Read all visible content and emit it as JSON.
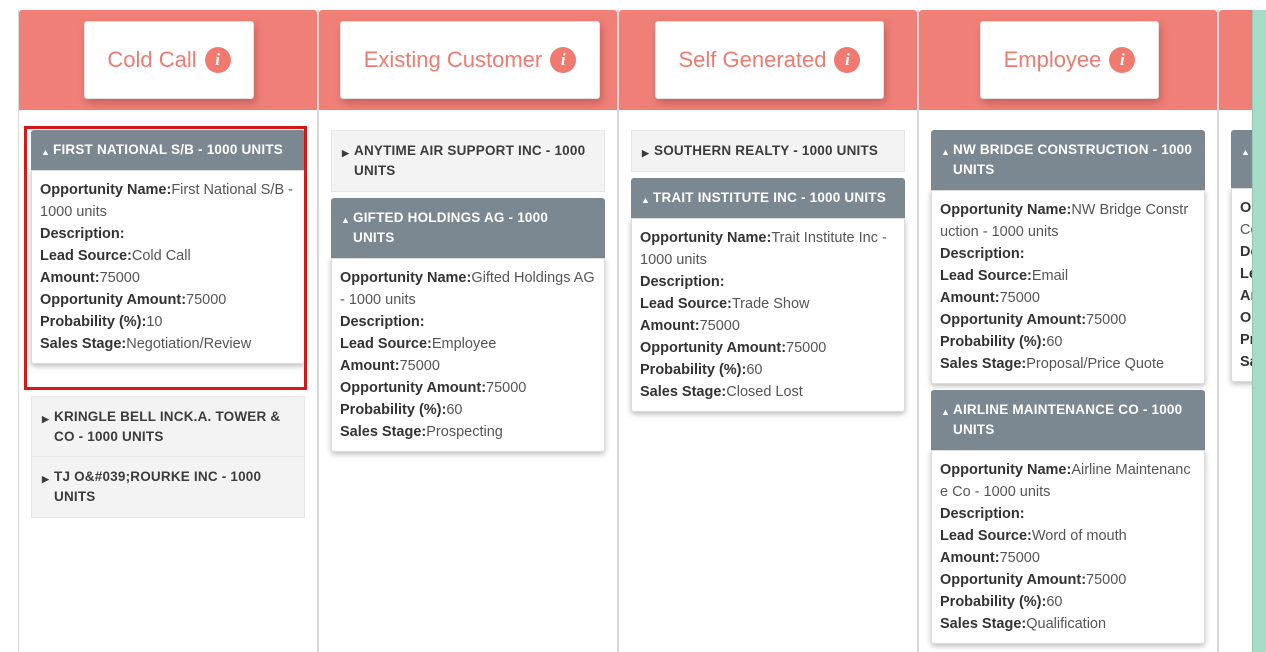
{
  "columns": [
    {
      "title": "Cold Call",
      "cards": [
        {
          "title": "FIRST NATIONAL S/B - 1000 UNITS",
          "expanded": true,
          "details": {
            "opportunity_name": "First National S/B - 1000 units",
            "description": "",
            "lead_source": "Cold Call",
            "amount": "75000",
            "opportunity_amount": "75000",
            "probability": "10",
            "sales_stage": "Negotiation/Review"
          }
        },
        {
          "title": "KRINGLE BELL INCK.A. TOWER & CO - 1000 UNITS",
          "expanded": false
        },
        {
          "title": "TJ O&#039;ROURKE INC - 1000 UNITS",
          "expanded": false
        }
      ]
    },
    {
      "title": "Existing Customer",
      "cards": [
        {
          "title": "ANYTIME AIR SUPPORT INC - 1000 UNITS",
          "expanded": false
        },
        {
          "title": "GIFTED HOLDINGS AG - 1000 UNITS",
          "expanded": true,
          "details": {
            "opportunity_name": "Gifted Holdings AG - 1000 units",
            "description": "",
            "lead_source": "Employee",
            "amount": "75000",
            "opportunity_amount": "75000",
            "probability": "60",
            "sales_stage": "Prospecting"
          }
        }
      ]
    },
    {
      "title": "Self Generated",
      "cards": [
        {
          "title": "SOUTHERN REALTY - 1000 UNITS",
          "expanded": false
        },
        {
          "title": "TRAIT INSTITUTE INC - 1000 UNITS",
          "expanded": true,
          "details": {
            "opportunity_name": "Trait Institute Inc - 1000 units",
            "description": "",
            "lead_source": "Trade Show",
            "amount": "75000",
            "opportunity_amount": "75000",
            "probability": "60",
            "sales_stage": "Closed Lost"
          }
        }
      ]
    },
    {
      "title": "Employee",
      "cards": [
        {
          "title": "NW BRIDGE CONSTRUCTION - 1000 UNITS",
          "expanded": true,
          "details": {
            "opportunity_name": "NW Bridge Construction - 1000 units",
            "description": "",
            "lead_source": "Email",
            "amount": "75000",
            "opportunity_amount": "75000",
            "probability": "60",
            "sales_stage": "Proposal/Price Quote"
          }
        },
        {
          "title": "AIRLINE MAINTENANCE CO - 1000 UNITS",
          "expanded": true,
          "details": {
            "opportunity_name": "Airline Maintenance Co - 1000 units",
            "description": "",
            "lead_source": "Word of mouth",
            "amount": "75000",
            "opportunity_amount": "75000",
            "probability": "60",
            "sales_stage": "Qualification"
          }
        }
      ]
    }
  ],
  "field_labels": {
    "opportunity_name": "Opportunity Name:",
    "description": "Description:",
    "lead_source": "Lead Source:",
    "amount": "Amount:",
    "opportunity_amount": "Opportunity Amount:",
    "probability": "Probability (%):",
    "sales_stage": "Sales Stage:"
  },
  "partial_column": {
    "card_label_fragments": [
      "Op",
      "Co",
      "De",
      "Le",
      "An",
      "Op",
      "Pr",
      "Sa"
    ]
  },
  "colors": {
    "header_bg": "#f08077",
    "title_text": "#f07a70",
    "card_header_open": "#7b8791",
    "highlight_border": "#d81818",
    "scrollbar": "#a6dcc8"
  },
  "icons": {
    "column_info": "info-icon",
    "collapsed": "triangle-right-icon",
    "expanded": "triangle-up-icon"
  }
}
